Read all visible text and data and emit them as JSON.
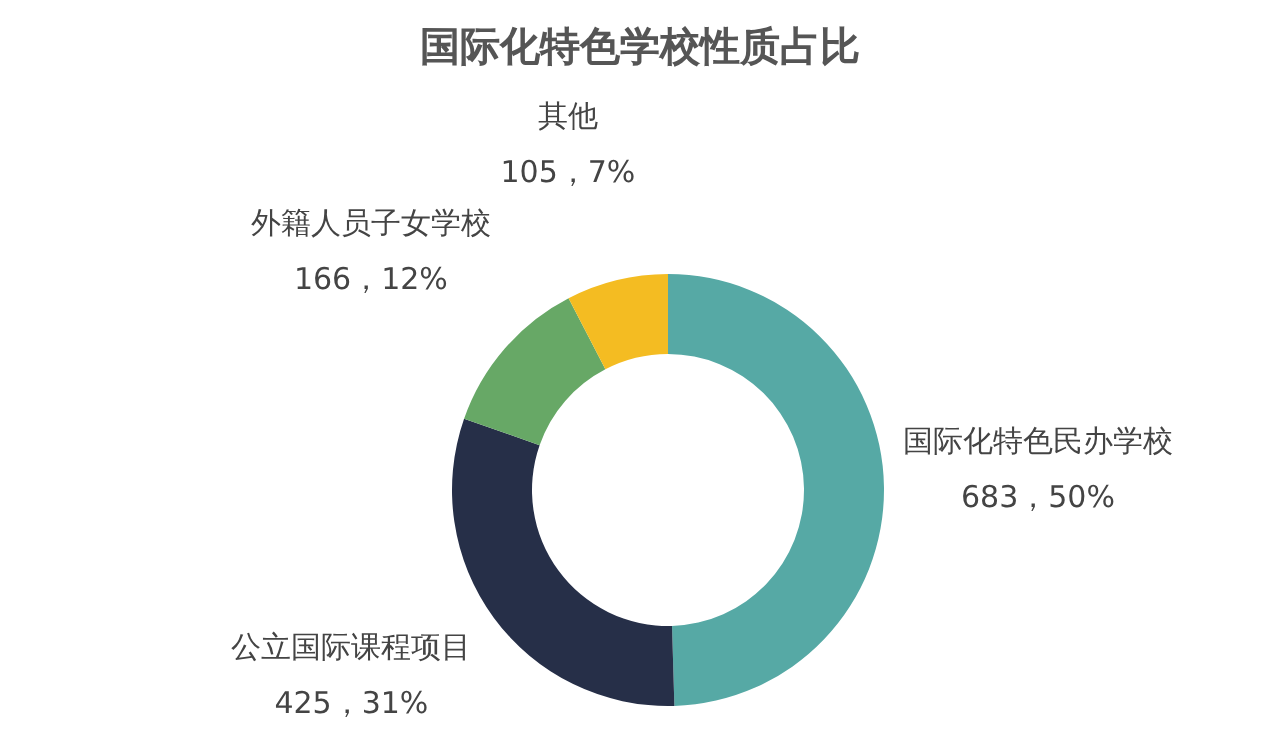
{
  "chart_data": {
    "type": "donut",
    "title": "国际化特色学校性质占比",
    "categories": [
      "国际化特色民办学校",
      "公立国际课程项目",
      "外籍人员子女学校",
      "其他"
    ],
    "values": [
      683,
      425,
      166,
      105
    ],
    "colors": [
      "#56a9a5",
      "#262f48",
      "#67a866",
      "#f4bc22"
    ],
    "value_labels": [
      "683，50%",
      "425，31%",
      "166，12%",
      "105，7%"
    ],
    "legend": false
  }
}
